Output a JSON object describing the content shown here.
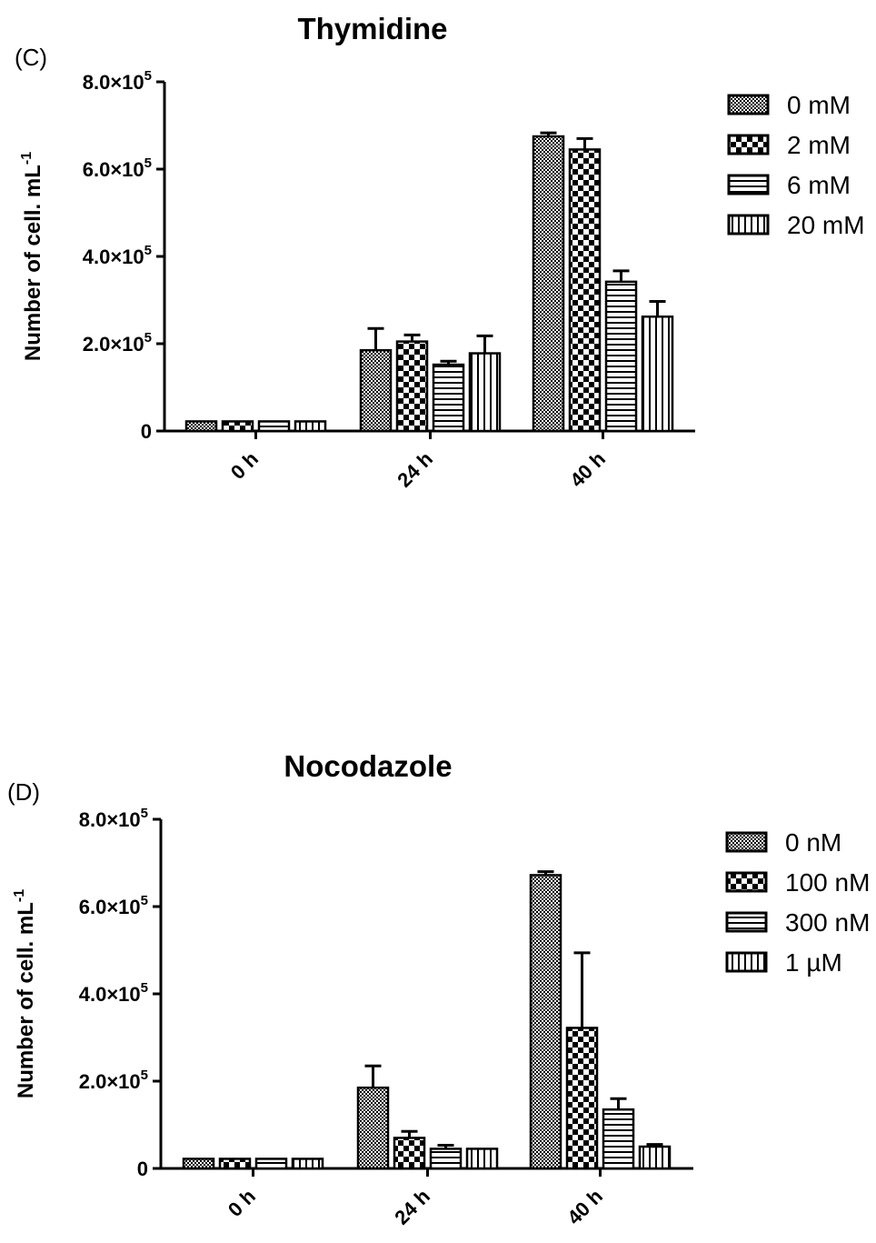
{
  "chart_data": [
    {
      "type": "bar",
      "panel_label": "(C)",
      "title": "Thymidine",
      "ylabel": "Number of cell. mL",
      "ylabel_sup": "-1",
      "ylim": [
        0,
        800000
      ],
      "yticks": [
        {
          "value": 0,
          "label": "0",
          "exp": ""
        },
        {
          "value": 200000,
          "label": "2.0×10",
          "exp": "5"
        },
        {
          "value": 400000,
          "label": "4.0×10",
          "exp": "5"
        },
        {
          "value": 600000,
          "label": "6.0×10",
          "exp": "5"
        },
        {
          "value": 800000,
          "label": "8.0×10",
          "exp": "5"
        }
      ],
      "categories": [
        "0 h",
        "24 h",
        "40 h"
      ],
      "legend_position": "right",
      "series": [
        {
          "name": "0 mM",
          "pattern": "fine-checker",
          "values": [
            22000,
            185000,
            675000
          ],
          "errors": [
            0,
            50000,
            8000
          ]
        },
        {
          "name": "2 mM",
          "pattern": "coarse-checker",
          "values": [
            22000,
            205000,
            645000
          ],
          "errors": [
            0,
            15000,
            25000
          ]
        },
        {
          "name": "6 mM",
          "pattern": "horizontal-lines",
          "values": [
            22000,
            152000,
            342000
          ],
          "errors": [
            0,
            8000,
            25000
          ]
        },
        {
          "name": "20 mM",
          "pattern": "vertical-lines",
          "values": [
            22000,
            178000,
            262000
          ],
          "errors": [
            0,
            40000,
            35000
          ]
        }
      ]
    },
    {
      "type": "bar",
      "panel_label": "(D)",
      "title": "Nocodazole",
      "ylabel": "Number of cell. mL",
      "ylabel_sup": "-1",
      "ylim": [
        0,
        800000
      ],
      "yticks": [
        {
          "value": 0,
          "label": "0",
          "exp": ""
        },
        {
          "value": 200000,
          "label": "2.0×10",
          "exp": "5"
        },
        {
          "value": 400000,
          "label": "4.0×10",
          "exp": "5"
        },
        {
          "value": 600000,
          "label": "6.0×10",
          "exp": "5"
        },
        {
          "value": 800000,
          "label": "8.0×10",
          "exp": "5"
        }
      ],
      "categories": [
        "0 h",
        "24 h",
        "40 h"
      ],
      "legend_position": "right",
      "series": [
        {
          "name": "0 nM",
          "pattern": "fine-checker",
          "values": [
            22000,
            185000,
            672000
          ],
          "errors": [
            0,
            50000,
            8000
          ]
        },
        {
          "name": "100 nM",
          "pattern": "coarse-checker",
          "values": [
            22000,
            70000,
            322000
          ],
          "errors": [
            0,
            15000,
            172000
          ]
        },
        {
          "name": "300 nM",
          "pattern": "horizontal-lines",
          "values": [
            22000,
            45000,
            135000
          ],
          "errors": [
            0,
            8000,
            25000
          ]
        },
        {
          "name": "1 µM",
          "pattern": "vertical-lines",
          "values": [
            22000,
            45000,
            50000
          ],
          "errors": [
            0,
            0,
            5000
          ]
        }
      ]
    }
  ]
}
